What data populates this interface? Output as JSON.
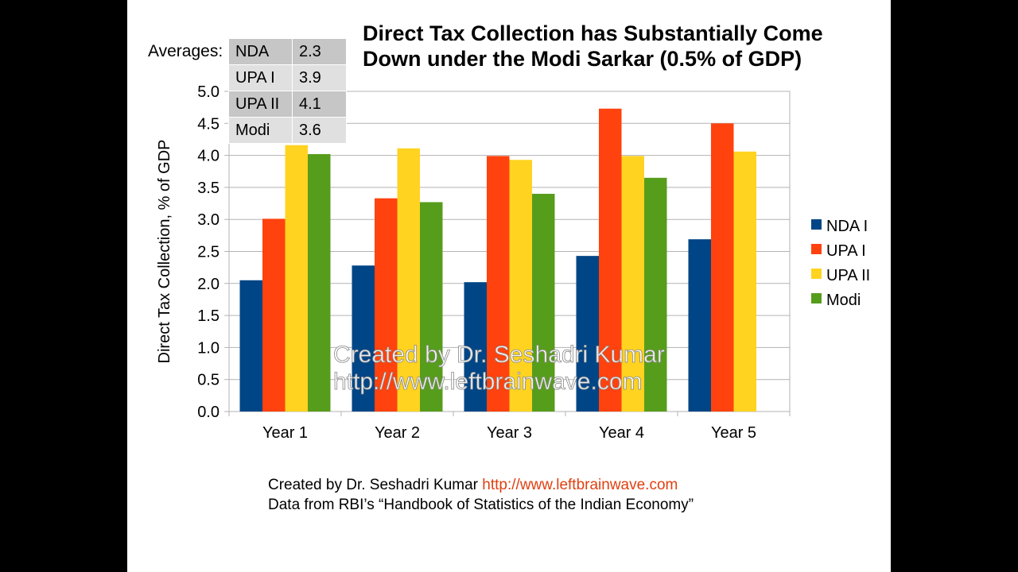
{
  "title_line1": "Direct Tax Collection has Substantially Come",
  "title_line2": "Down under the Modi Sarkar (0.5% of GDP)",
  "averages": {
    "label": "Averages:",
    "rows": [
      {
        "name": "NDA",
        "value": "2.3"
      },
      {
        "name": "UPA I",
        "value": "3.9"
      },
      {
        "name": "UPA II",
        "value": "4.1"
      },
      {
        "name": "Modi",
        "value": "3.6"
      }
    ]
  },
  "watermark": {
    "line1": "Created by Dr. Seshadri Kumar",
    "line2": "http://www.leftbrainwave.com"
  },
  "footer": {
    "created_by": "Created by Dr. Seshadri Kumar",
    "url": "http://www.leftbrainwave.com",
    "source": "Data from RBI’s “Handbook of Statistics of the Indian Economy”"
  },
  "colors": {
    "NDA I": "#004586",
    "UPA I": "#ff420e",
    "UPA II": "#ffd320",
    "Modi": "#579d1c"
  },
  "chart_data": {
    "type": "bar",
    "title": "Direct Tax Collection has Substantially Come Down under the Modi Sarkar (0.5% of GDP)",
    "xlabel": "",
    "ylabel": "Direct Tax Collection, % of GDP",
    "ylim": [
      0,
      5
    ],
    "yticks": [
      "0.0",
      "0.5",
      "1.0",
      "1.5",
      "2.0",
      "2.5",
      "3.0",
      "3.5",
      "4.0",
      "4.5",
      "5.0"
    ],
    "categories": [
      "Year 1",
      "Year 2",
      "Year 3",
      "Year 4",
      "Year 5"
    ],
    "grid": true,
    "legend": "right",
    "series": [
      {
        "name": "NDA I",
        "values": [
          2.05,
          2.28,
          2.02,
          2.43,
          2.69
        ]
      },
      {
        "name": "UPA I",
        "values": [
          3.01,
          3.33,
          3.99,
          4.73,
          4.5
        ]
      },
      {
        "name": "UPA II",
        "values": [
          4.16,
          4.11,
          3.93,
          3.99,
          4.06
        ]
      },
      {
        "name": "Modi",
        "values": [
          4.02,
          3.27,
          3.4,
          3.65,
          null
        ]
      }
    ]
  }
}
